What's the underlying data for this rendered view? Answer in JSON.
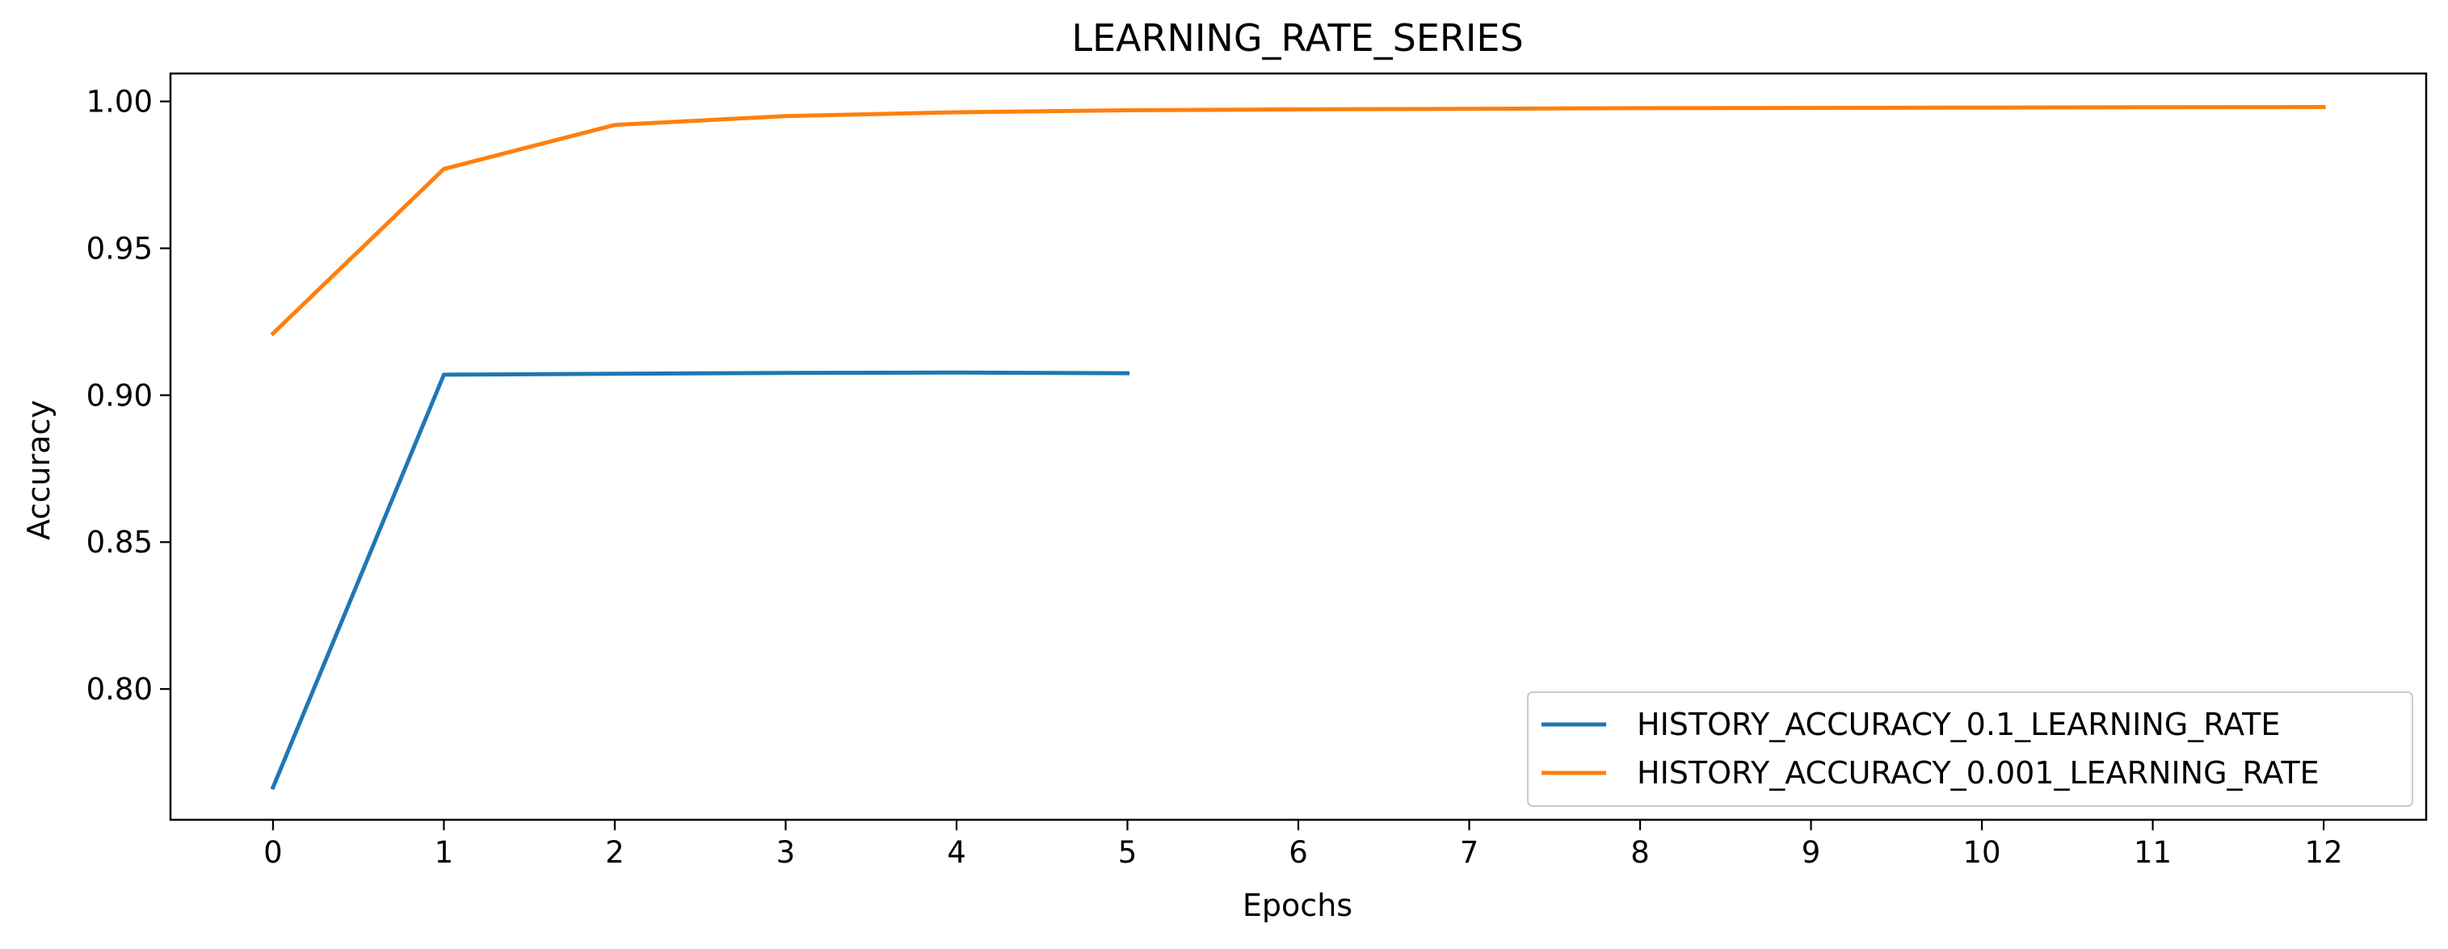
{
  "chart_data": {
    "type": "line",
    "title": "LEARNING_RATE_SERIES",
    "xlabel": "Epochs",
    "ylabel": "Accuracy",
    "xlim": [
      -0.6,
      12.6
    ],
    "ylim": [
      0.7555,
      1.0095
    ],
    "xticks": [
      0,
      1,
      2,
      3,
      4,
      5,
      6,
      7,
      8,
      9,
      10,
      11,
      12
    ],
    "xtick_labels": [
      "0",
      "1",
      "2",
      "3",
      "4",
      "5",
      "6",
      "7",
      "8",
      "9",
      "10",
      "11",
      "12"
    ],
    "yticks": [
      0.8,
      0.85,
      0.9,
      0.95,
      1.0
    ],
    "ytick_labels": [
      "0.80",
      "0.85",
      "0.90",
      "0.95",
      "1.00"
    ],
    "grid": false,
    "legend_position": "lower-right",
    "series": [
      {
        "name": "HISTORY_ACCURACY_0.1_LEARNING_RATE",
        "color": "#1f77b4",
        "x": [
          0,
          1,
          2,
          3,
          4,
          5
        ],
        "values": [
          0.7665,
          0.907,
          0.9073,
          0.9076,
          0.9077,
          0.9075
        ]
      },
      {
        "name": "HISTORY_ACCURACY_0.001_LEARNING_RATE",
        "color": "#ff7f0e",
        "x": [
          0,
          1,
          2,
          3,
          4,
          5,
          6,
          7,
          8,
          9,
          10,
          11,
          12
        ],
        "values": [
          0.921,
          0.977,
          0.992,
          0.995,
          0.9963,
          0.997,
          0.9973,
          0.9975,
          0.9977,
          0.9978,
          0.9979,
          0.998,
          0.9981
        ]
      }
    ]
  }
}
